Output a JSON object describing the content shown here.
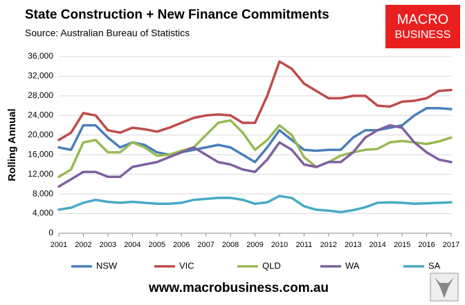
{
  "chart_data": {
    "type": "line",
    "title": "State Construction + New Finance Commitments",
    "subtitle": "Source: Australian Bureau of Statistics",
    "y_label": "Rolling Annual",
    "logo": [
      "MACRO",
      "BUSINESS"
    ],
    "footer": "www.macrobusiness.com.au",
    "x": [
      2001,
      2001.5,
      2002,
      2002.5,
      2003,
      2003.5,
      2004,
      2004.5,
      2005,
      2005.5,
      2006,
      2006.5,
      2007,
      2007.5,
      2008,
      2008.5,
      2009,
      2009.5,
      2010,
      2010.5,
      2011,
      2011.5,
      2012,
      2012.5,
      2013,
      2013.5,
      2014,
      2014.5,
      2015,
      2015.5,
      2016,
      2016.5,
      2017
    ],
    "xlim": [
      2001,
      2017
    ],
    "xticks": [
      2001,
      2002,
      2003,
      2004,
      2005,
      2006,
      2007,
      2008,
      2009,
      2010,
      2011,
      2012,
      2013,
      2014,
      2015,
      2016,
      2017
    ],
    "ylim": [
      0,
      36000
    ],
    "yticks": [
      0,
      {
        "value": 4000,
        "label": "4,000"
      },
      {
        "value": 8000,
        "label": "8,000"
      },
      {
        "value": 12000,
        "label": "12,000"
      },
      {
        "value": 16000,
        "label": "16,000"
      },
      {
        "value": 20000,
        "label": "20,000"
      },
      {
        "value": 24000,
        "label": "24,000"
      },
      {
        "value": 28000,
        "label": "28,000"
      },
      {
        "value": 32000,
        "label": "32,000"
      },
      {
        "value": 36000,
        "label": "36,000"
      }
    ],
    "grid": true,
    "legend": "bottom",
    "series": [
      {
        "name": "NSW",
        "color": "#4a7ebb",
        "values": [
          17500,
          17000,
          22000,
          22000,
          19500,
          17500,
          18500,
          18000,
          16500,
          16000,
          16500,
          17000,
          17500,
          18000,
          17500,
          16000,
          14500,
          17500,
          21000,
          19000,
          17000,
          16800,
          17000,
          17000,
          19500,
          21000,
          21000,
          21500,
          22000,
          24000,
          25500,
          25500,
          25300
        ]
      },
      {
        "name": "VIC",
        "color": "#be4b48",
        "values": [
          19000,
          20500,
          24500,
          24000,
          21000,
          20500,
          21500,
          21200,
          20700,
          21500,
          22500,
          23500,
          24000,
          24200,
          24000,
          22500,
          22500,
          28000,
          35000,
          33500,
          30500,
          29000,
          27500,
          27500,
          28000,
          28000,
          26000,
          25800,
          26800,
          27000,
          27500,
          29000,
          29200
        ]
      },
      {
        "name": "QLD",
        "color": "#98b954",
        "values": [
          11500,
          13000,
          18500,
          19000,
          16500,
          16500,
          18500,
          17500,
          15800,
          16000,
          16800,
          17500,
          20000,
          22500,
          23000,
          20500,
          17000,
          19000,
          22000,
          20000,
          15500,
          13500,
          14500,
          15800,
          16500,
          17000,
          17200,
          18500,
          18800,
          18500,
          18200,
          18700,
          19500
        ]
      },
      {
        "name": "WA",
        "color": "#7d60a0",
        "values": [
          9500,
          11000,
          12500,
          12500,
          11500,
          11500,
          13500,
          14000,
          14500,
          15500,
          16500,
          17500,
          16000,
          14500,
          14000,
          13000,
          12500,
          15000,
          18500,
          17000,
          14000,
          13500,
          14500,
          14500,
          16500,
          19500,
          21000,
          22000,
          21500,
          18500,
          16500,
          15000,
          14500
        ]
      },
      {
        "name": "SA",
        "color": "#46aac5",
        "values": [
          4800,
          5200,
          6200,
          6800,
          6400,
          6200,
          6400,
          6200,
          6000,
          6000,
          6200,
          6800,
          7000,
          7200,
          7200,
          6800,
          6000,
          6300,
          7600,
          7200,
          5500,
          4800,
          4600,
          4300,
          4700,
          5300,
          6200,
          6300,
          6200,
          6000,
          6100,
          6200,
          6300
        ]
      }
    ]
  }
}
